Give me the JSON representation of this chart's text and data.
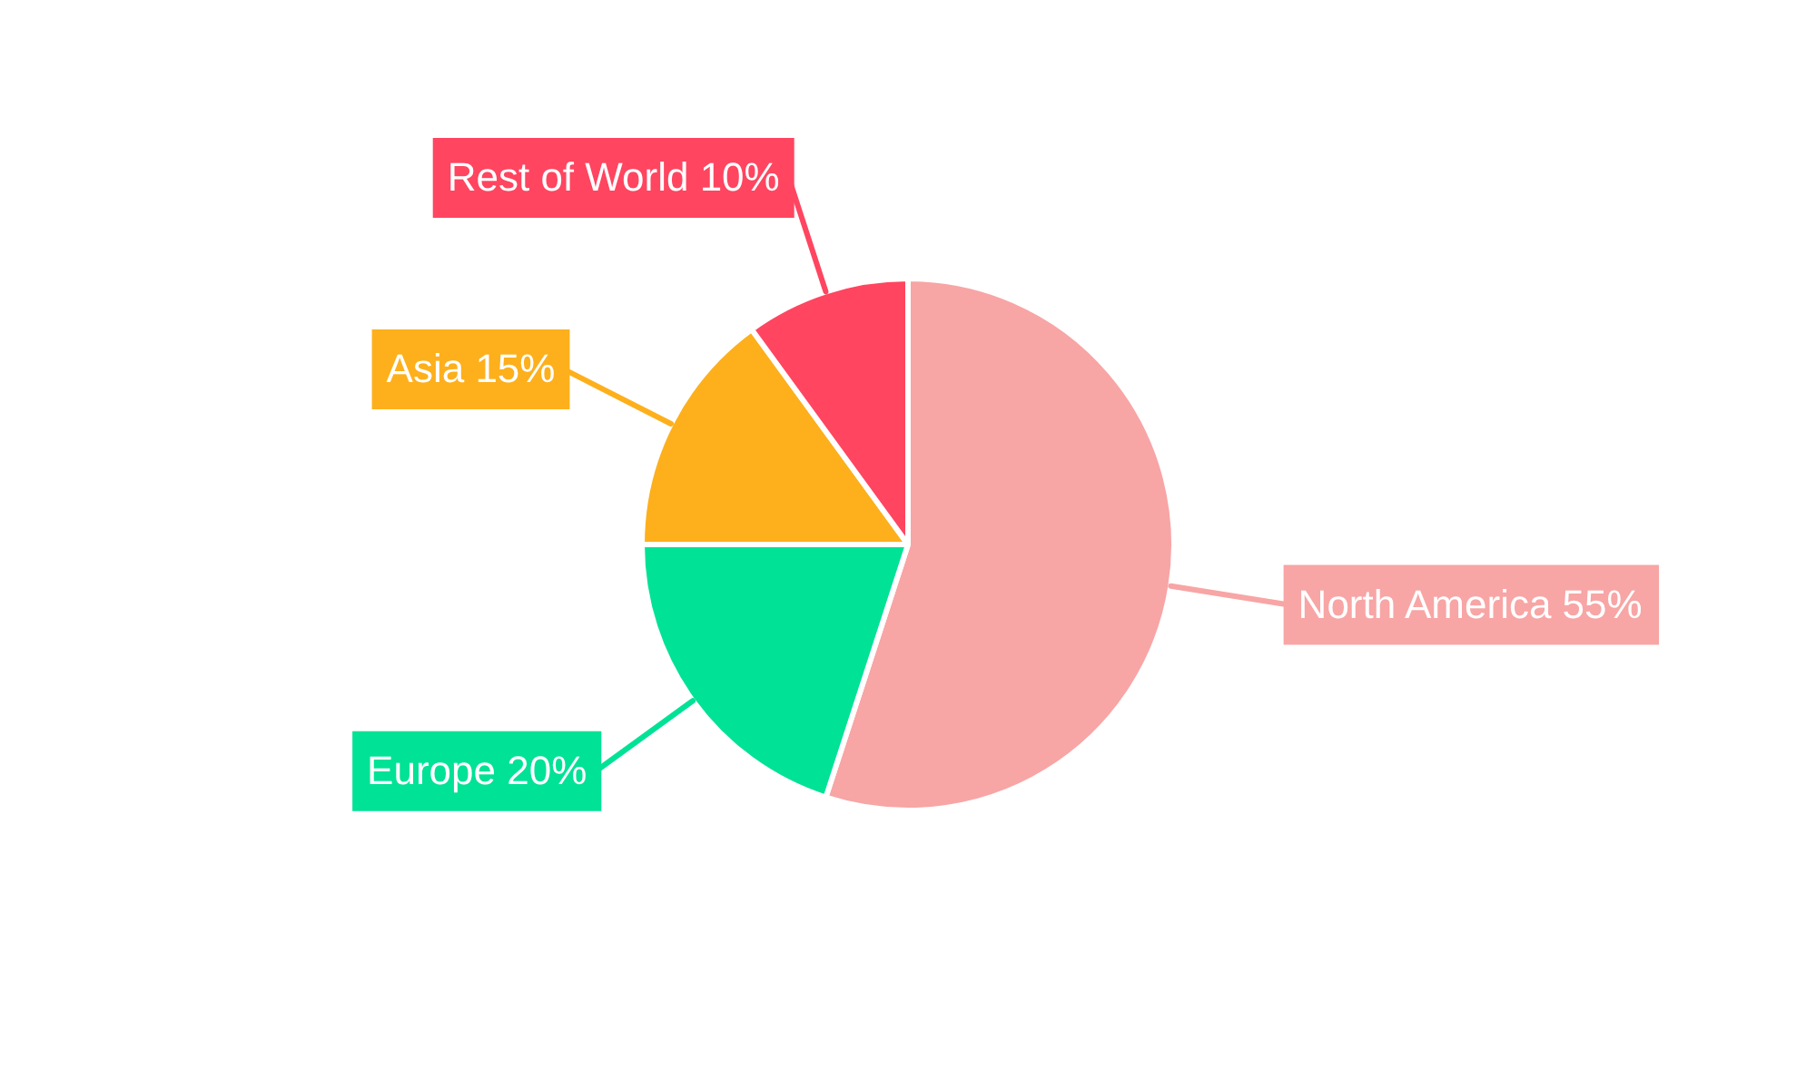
{
  "chart_data": {
    "type": "pie",
    "categories": [
      "North America",
      "Europe",
      "Asia",
      "Rest of World"
    ],
    "values": [
      55,
      20,
      15,
      10
    ],
    "colors": [
      "#f8a5a5",
      "#00e295",
      "#fdb01c",
      "#ff4560"
    ],
    "value_labels": [
      "55%",
      "20%",
      "15%",
      "10%"
    ],
    "legend": false
  }
}
